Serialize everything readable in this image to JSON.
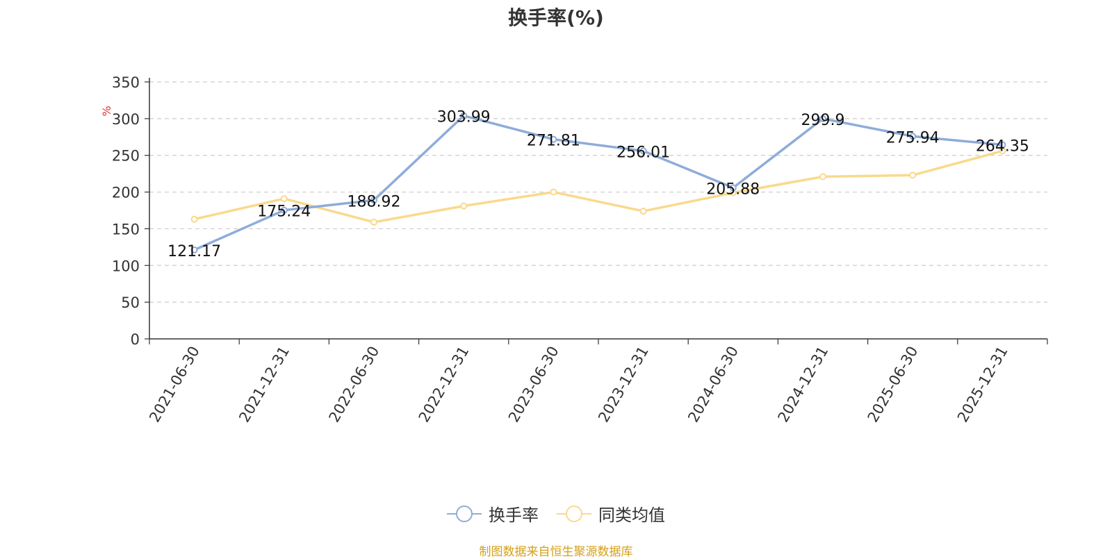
{
  "chart_data": {
    "type": "line",
    "title": "换手率(%)",
    "ylabel": "%",
    "xlabel": "",
    "ylim": [
      0,
      350
    ],
    "yticks": [
      0,
      50,
      100,
      150,
      200,
      250,
      300,
      350
    ],
    "grid": true,
    "categories": [
      "2021-06-30",
      "2021-12-31",
      "2022-06-30",
      "2022-12-31",
      "2023-06-30",
      "2023-12-31",
      "2024-06-30",
      "2024-12-31",
      "2025-06-30",
      "2025-12-31"
    ],
    "series": [
      {
        "name": "换手率",
        "color": "#8eacd9",
        "values": [
          121.17,
          175.24,
          188.92,
          303.99,
          271.81,
          256.01,
          205.88,
          299.9,
          275.94,
          264.35
        ],
        "labels": [
          "121.17",
          "175.24",
          "188.92",
          "303.99",
          "271.81",
          "256.01",
          "205.88",
          "299.9",
          "275.94",
          "264.35"
        ]
      },
      {
        "name": "同类均值",
        "color": "#fad98c",
        "values": [
          163,
          191,
          159,
          181,
          200,
          174,
          199,
          221,
          223,
          256
        ]
      }
    ],
    "legend_position": "bottom",
    "source": "制图数据来自恒生聚源数据库"
  }
}
